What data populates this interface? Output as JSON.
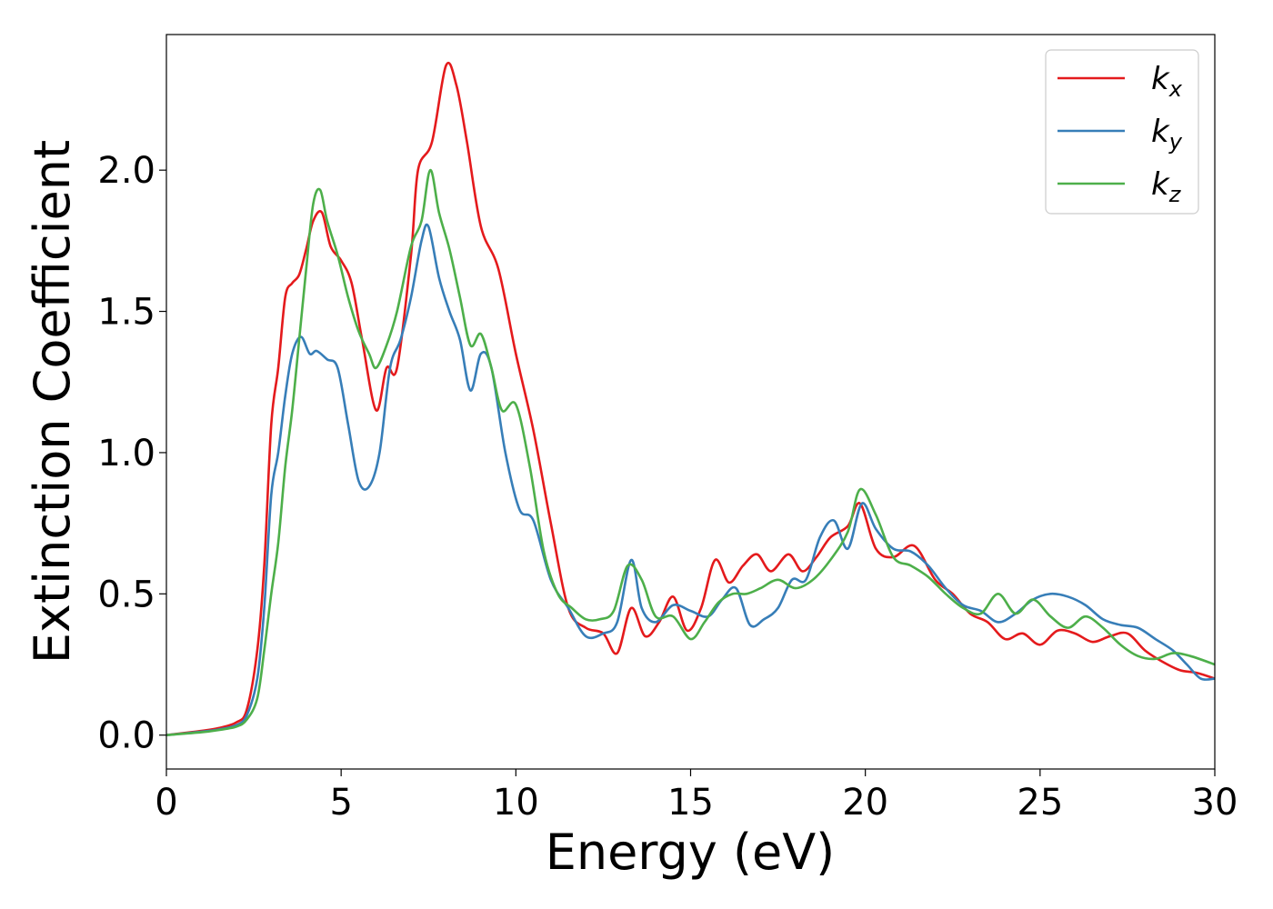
{
  "chart_data": {
    "type": "line",
    "title": "",
    "xlabel": "Energy (eV)",
    "ylabel": "Extinction Coefficient",
    "xlim": [
      0,
      30
    ],
    "ylim": [
      -0.12,
      2.48
    ],
    "xticks": [
      0,
      5,
      10,
      15,
      20,
      25,
      30
    ],
    "xtick_labels": [
      "0",
      "5",
      "10",
      "15",
      "20",
      "25",
      "30"
    ],
    "yticks": [
      0.0,
      0.5,
      1.0,
      1.5,
      2.0
    ],
    "ytick_labels": [
      "0.0",
      "0.5",
      "1.0",
      "1.5",
      "2.0"
    ],
    "grid": false,
    "legend_position": "top-right",
    "series": [
      {
        "name": "k_x",
        "label_main": "k",
        "label_sub": "x",
        "color": "#e41a1c",
        "x": [
          0,
          1,
          1.5,
          2,
          2.3,
          2.6,
          2.8,
          3.0,
          3.2,
          3.4,
          3.6,
          3.8,
          4.0,
          4.2,
          4.45,
          4.7,
          5.0,
          5.3,
          5.6,
          6.0,
          6.3,
          6.6,
          7.0,
          7.2,
          7.6,
          8.0,
          8.3,
          8.6,
          9.0,
          9.5,
          10.0,
          10.5,
          11.0,
          11.5,
          12.0,
          12.5,
          12.9,
          13.3,
          13.7,
          14.1,
          14.5,
          14.9,
          15.3,
          15.7,
          16.1,
          16.5,
          16.9,
          17.3,
          17.8,
          18.2,
          18.6,
          19.0,
          19.5,
          19.85,
          20.3,
          20.8,
          21.4,
          22.0,
          22.5,
          23.0,
          23.5,
          24.0,
          24.5,
          25.0,
          25.5,
          26.0,
          26.5,
          27.0,
          27.5,
          28.0,
          28.5,
          29.0,
          29.5,
          30.0
        ],
        "values": [
          0,
          0.015,
          0.025,
          0.045,
          0.09,
          0.3,
          0.6,
          1.1,
          1.3,
          1.55,
          1.6,
          1.63,
          1.72,
          1.82,
          1.85,
          1.73,
          1.68,
          1.6,
          1.4,
          1.15,
          1.3,
          1.3,
          1.7,
          2.0,
          2.1,
          2.37,
          2.3,
          2.1,
          1.8,
          1.65,
          1.35,
          1.08,
          0.75,
          0.45,
          0.38,
          0.36,
          0.29,
          0.45,
          0.35,
          0.4,
          0.49,
          0.37,
          0.45,
          0.62,
          0.54,
          0.6,
          0.64,
          0.58,
          0.64,
          0.58,
          0.63,
          0.7,
          0.74,
          0.82,
          0.66,
          0.63,
          0.67,
          0.55,
          0.5,
          0.43,
          0.4,
          0.34,
          0.36,
          0.32,
          0.37,
          0.36,
          0.33,
          0.35,
          0.36,
          0.3,
          0.26,
          0.23,
          0.22,
          0.2
        ]
      },
      {
        "name": "k_y",
        "label_main": "k",
        "label_sub": "y",
        "color": "#377eb8",
        "x": [
          0,
          1,
          1.5,
          2,
          2.3,
          2.6,
          2.8,
          3.0,
          3.2,
          3.4,
          3.6,
          3.85,
          4.1,
          4.3,
          4.6,
          4.9,
          5.2,
          5.5,
          5.8,
          6.1,
          6.4,
          6.7,
          7.0,
          7.3,
          7.5,
          7.8,
          8.1,
          8.4,
          8.7,
          9.0,
          9.3,
          9.7,
          10.1,
          10.5,
          11.0,
          11.5,
          12.0,
          12.5,
          12.9,
          13.3,
          13.6,
          14.0,
          14.5,
          15.0,
          15.5,
          15.9,
          16.3,
          16.7,
          17.1,
          17.5,
          17.9,
          18.3,
          18.7,
          19.1,
          19.5,
          19.9,
          20.3,
          20.8,
          21.3,
          21.8,
          22.3,
          22.8,
          23.3,
          23.8,
          24.3,
          24.8,
          25.3,
          25.8,
          26.3,
          26.8,
          27.3,
          27.8,
          28.3,
          28.8,
          29.2,
          29.6,
          30.0
        ],
        "values": [
          0,
          0.012,
          0.02,
          0.035,
          0.07,
          0.2,
          0.45,
          0.85,
          1.0,
          1.2,
          1.35,
          1.41,
          1.35,
          1.36,
          1.33,
          1.3,
          1.1,
          0.9,
          0.88,
          1.0,
          1.3,
          1.4,
          1.55,
          1.75,
          1.8,
          1.62,
          1.5,
          1.4,
          1.22,
          1.35,
          1.3,
          1.0,
          0.8,
          0.76,
          0.55,
          0.45,
          0.35,
          0.36,
          0.4,
          0.62,
          0.45,
          0.4,
          0.46,
          0.44,
          0.42,
          0.48,
          0.52,
          0.39,
          0.41,
          0.45,
          0.55,
          0.55,
          0.7,
          0.76,
          0.66,
          0.82,
          0.73,
          0.66,
          0.65,
          0.6,
          0.52,
          0.46,
          0.44,
          0.4,
          0.43,
          0.48,
          0.5,
          0.49,
          0.46,
          0.41,
          0.39,
          0.38,
          0.34,
          0.3,
          0.25,
          0.2,
          0.2
        ]
      },
      {
        "name": "k_z",
        "label_main": "k",
        "label_sub": "z",
        "color": "#4daf4a",
        "x": [
          0,
          1,
          1.5,
          2,
          2.3,
          2.6,
          2.8,
          3.0,
          3.2,
          3.4,
          3.6,
          3.8,
          4.0,
          4.2,
          4.4,
          4.6,
          4.9,
          5.2,
          5.5,
          5.8,
          6.0,
          6.3,
          6.6,
          7.0,
          7.3,
          7.55,
          7.8,
          8.1,
          8.4,
          8.7,
          9.0,
          9.3,
          9.6,
          10.0,
          10.4,
          10.8,
          11.2,
          11.6,
          12.0,
          12.4,
          12.8,
          13.2,
          13.6,
          14.0,
          14.5,
          15.0,
          15.4,
          15.8,
          16.2,
          16.6,
          17.0,
          17.5,
          18.0,
          18.5,
          19.0,
          19.5,
          19.85,
          20.3,
          20.8,
          21.3,
          21.8,
          22.3,
          22.8,
          23.3,
          23.8,
          24.3,
          24.8,
          25.3,
          25.8,
          26.3,
          26.8,
          27.3,
          27.8,
          28.3,
          28.8,
          29.3,
          30.0
        ],
        "values": [
          0,
          0.01,
          0.018,
          0.03,
          0.055,
          0.13,
          0.3,
          0.5,
          0.68,
          0.95,
          1.15,
          1.4,
          1.65,
          1.88,
          1.93,
          1.82,
          1.7,
          1.55,
          1.43,
          1.35,
          1.3,
          1.38,
          1.5,
          1.73,
          1.82,
          2.0,
          1.85,
          1.72,
          1.55,
          1.38,
          1.42,
          1.3,
          1.15,
          1.17,
          0.95,
          0.65,
          0.5,
          0.45,
          0.41,
          0.41,
          0.44,
          0.6,
          0.55,
          0.42,
          0.42,
          0.34,
          0.4,
          0.47,
          0.5,
          0.5,
          0.52,
          0.55,
          0.52,
          0.55,
          0.62,
          0.72,
          0.87,
          0.78,
          0.63,
          0.6,
          0.56,
          0.5,
          0.45,
          0.43,
          0.5,
          0.43,
          0.48,
          0.42,
          0.38,
          0.42,
          0.38,
          0.32,
          0.28,
          0.27,
          0.29,
          0.28,
          0.25
        ]
      }
    ]
  }
}
